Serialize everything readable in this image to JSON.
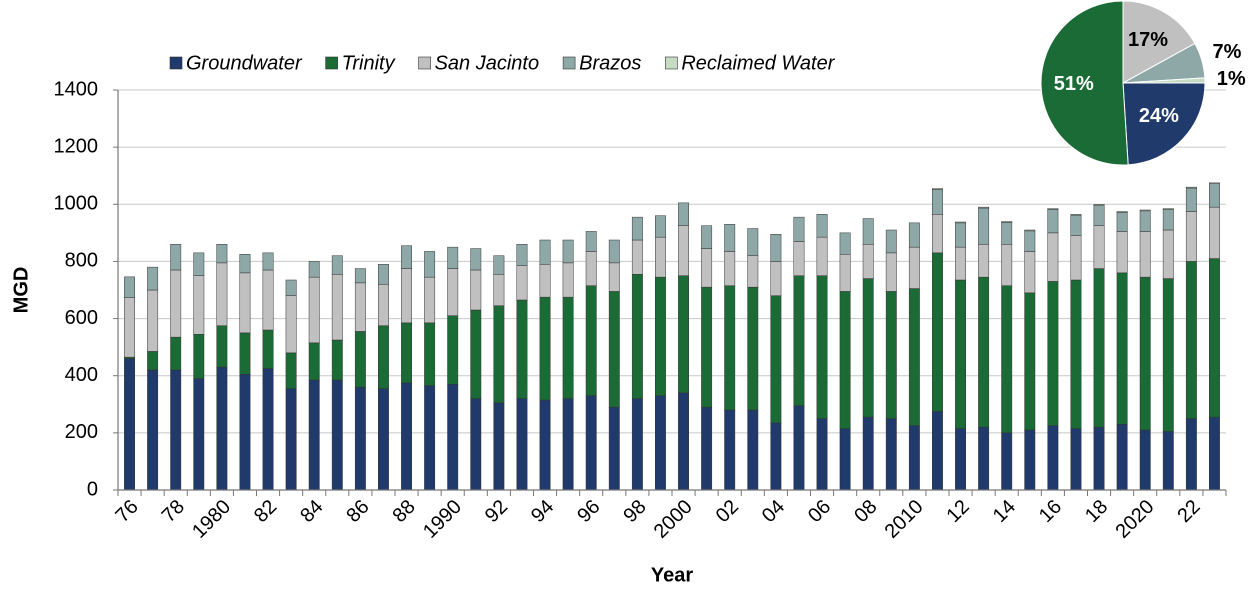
{
  "chart_data": [
    {
      "type": "bar",
      "ylabel": "MGD",
      "xlabel": "Year",
      "ylim": [
        0,
        1400
      ],
      "yticks": [
        0,
        200,
        400,
        600,
        800,
        1000,
        1200,
        1400
      ],
      "grid": true,
      "stacked": true,
      "categories": [
        "76",
        null,
        "78",
        null,
        "1980",
        null,
        "82",
        null,
        "84",
        null,
        "86",
        null,
        "88",
        null,
        "1990",
        null,
        "92",
        null,
        "94",
        null,
        "96",
        null,
        "98",
        null,
        "2000",
        null,
        "02",
        null,
        "04",
        null,
        "06",
        null,
        "08",
        null,
        "2010",
        null,
        "12",
        null,
        "14",
        null,
        "16",
        null,
        "18",
        null,
        "2020",
        null,
        "22",
        null
      ],
      "series": [
        {
          "name": "Groundwater",
          "color": "#1f3a6b",
          "values": [
            460,
            420,
            420,
            390,
            430,
            405,
            425,
            355,
            385,
            385,
            360,
            355,
            375,
            365,
            370,
            320,
            305,
            320,
            315,
            320,
            330,
            290,
            320,
            330,
            340,
            290,
            280,
            280,
            235,
            295,
            250,
            215,
            255,
            250,
            225,
            275,
            215,
            220,
            200,
            210,
            225,
            215,
            220,
            230,
            210,
            205,
            250,
            255
          ]
        },
        {
          "name": "Trinity",
          "color": "#1b6b36",
          "values": [
            5,
            65,
            115,
            155,
            145,
            145,
            135,
            125,
            130,
            140,
            195,
            220,
            210,
            220,
            240,
            310,
            340,
            345,
            360,
            355,
            385,
            405,
            435,
            415,
            410,
            420,
            435,
            430,
            445,
            455,
            500,
            480,
            485,
            445,
            480,
            555,
            520,
            525,
            515,
            480,
            505,
            520,
            555,
            530,
            535,
            535,
            550,
            555
          ]
        },
        {
          "name": "San Jacinto",
          "color": "#c0c0c0",
          "values": [
            208,
            215,
            235,
            205,
            220,
            210,
            210,
            200,
            230,
            230,
            170,
            145,
            190,
            160,
            165,
            140,
            110,
            120,
            115,
            120,
            120,
            100,
            120,
            140,
            175,
            135,
            120,
            110,
            120,
            120,
            135,
            130,
            120,
            135,
            145,
            135,
            115,
            115,
            145,
            145,
            170,
            155,
            150,
            145,
            160,
            170,
            175,
            180
          ]
        },
        {
          "name": "Brazos",
          "color": "#8ea8a8",
          "values": [
            73,
            80,
            90,
            80,
            65,
            65,
            60,
            55,
            55,
            65,
            50,
            70,
            80,
            90,
            75,
            75,
            65,
            75,
            85,
            80,
            70,
            80,
            80,
            75,
            80,
            80,
            95,
            95,
            95,
            85,
            80,
            75,
            90,
            80,
            85,
            87,
            85,
            127,
            77,
            72,
            82,
            72,
            72,
            67,
            72,
            72,
            82,
            82
          ]
        },
        {
          "name": "Reclaimed Water",
          "color": "#c5dcc3",
          "values": [
            0,
            0,
            0,
            0,
            0,
            0,
            0,
            0,
            0,
            0,
            0,
            0,
            0,
            0,
            0,
            0,
            0,
            0,
            0,
            0,
            0,
            0,
            0,
            0,
            0,
            0,
            0,
            0,
            0,
            0,
            0,
            0,
            0,
            0,
            0,
            3,
            3,
            3,
            3,
            3,
            3,
            3,
            3,
            3,
            3,
            3,
            3,
            3
          ]
        }
      ]
    },
    {
      "type": "pie",
      "values": [
        17,
        7,
        1,
        24,
        51
      ],
      "value_labels": [
        "17%",
        "7%",
        "1%",
        "24%",
        "51%"
      ],
      "colors": [
        "#c0c0c0",
        "#8ea8a8",
        "#c5dcc3",
        "#1f3a6b",
        "#1b6b36"
      ]
    }
  ]
}
